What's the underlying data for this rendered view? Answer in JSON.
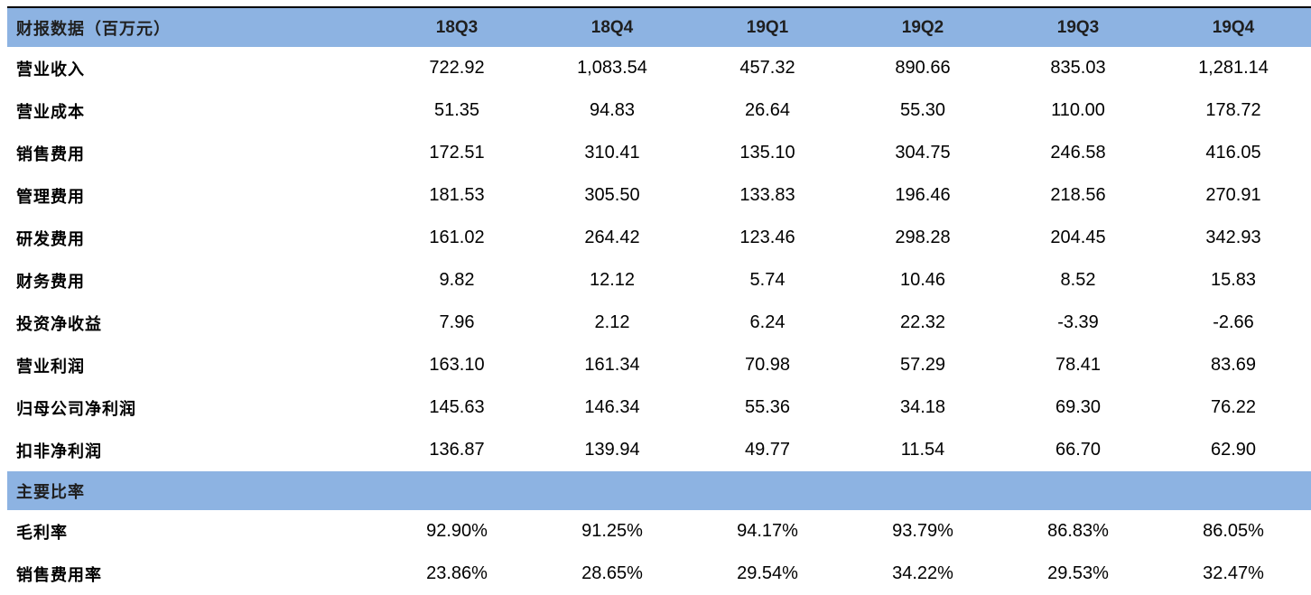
{
  "table": {
    "header_label": "财报数据（百万元）",
    "columns": [
      "18Q3",
      "18Q4",
      "19Q1",
      "19Q2",
      "19Q3",
      "19Q4"
    ],
    "rows": [
      {
        "label": "营业收入",
        "values": [
          "722.92",
          "1,083.54",
          "457.32",
          "890.66",
          "835.03",
          "1,281.14"
        ]
      },
      {
        "label": "营业成本",
        "values": [
          "51.35",
          "94.83",
          "26.64",
          "55.30",
          "110.00",
          "178.72"
        ]
      },
      {
        "label": "销售费用",
        "values": [
          "172.51",
          "310.41",
          "135.10",
          "304.75",
          "246.58",
          "416.05"
        ]
      },
      {
        "label": "管理费用",
        "values": [
          "181.53",
          "305.50",
          "133.83",
          "196.46",
          "218.56",
          "270.91"
        ]
      },
      {
        "label": "研发费用",
        "values": [
          "161.02",
          "264.42",
          "123.46",
          "298.28",
          "204.45",
          "342.93"
        ]
      },
      {
        "label": "财务费用",
        "values": [
          "9.82",
          "12.12",
          "5.74",
          "10.46",
          "8.52",
          "15.83"
        ]
      },
      {
        "label": "投资净收益",
        "values": [
          "7.96",
          "2.12",
          "6.24",
          "22.32",
          "-3.39",
          "-2.66"
        ]
      },
      {
        "label": "营业利润",
        "values": [
          "163.10",
          "161.34",
          "70.98",
          "57.29",
          "78.41",
          "83.69"
        ]
      },
      {
        "label": "归母公司净利润",
        "values": [
          "145.63",
          "146.34",
          "55.36",
          "34.18",
          "69.30",
          "76.22"
        ]
      },
      {
        "label": "扣非净利润",
        "values": [
          "136.87",
          "139.94",
          "49.77",
          "11.54",
          "66.70",
          "62.90"
        ]
      }
    ],
    "section_label": "主要比率",
    "ratio_rows": [
      {
        "label": "毛利率",
        "values": [
          "92.90%",
          "91.25%",
          "94.17%",
          "93.79%",
          "86.83%",
          "86.05%"
        ]
      },
      {
        "label": "销售费用率",
        "values": [
          "23.86%",
          "28.65%",
          "29.54%",
          "34.22%",
          "29.53%",
          "32.47%"
        ]
      }
    ]
  },
  "colors": {
    "header_fill": "#8db3e2",
    "text": "#000000"
  }
}
